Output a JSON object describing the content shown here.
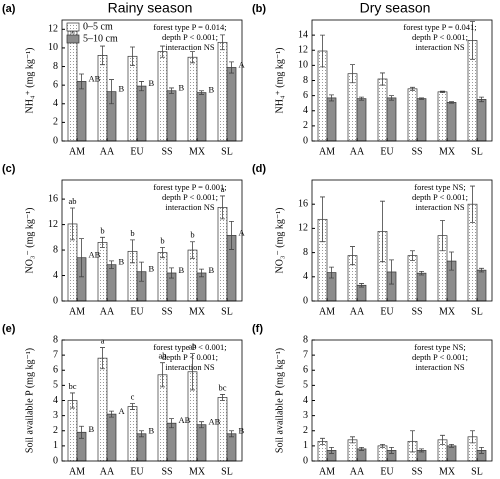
{
  "column_titles": [
    "Rainy season",
    "Dry season"
  ],
  "chart_data": [
    {
      "type": "bar",
      "panel": "(a)",
      "ylabel": "NH₄⁺ (mg kg⁻¹)",
      "annotation": [
        "forest type P = 0.014;",
        "depth P < 0.001;",
        "interaction NS"
      ],
      "categories": [
        "AM",
        "AA",
        "EU",
        "SS",
        "MX",
        "SL"
      ],
      "ylim": [
        0,
        13
      ],
      "yticks": [
        0,
        2,
        4,
        6,
        8,
        10,
        12
      ],
      "legend": "top-left",
      "series": [
        {
          "name": "0–5 cm",
          "color": "#ffffff",
          "pattern": "dots",
          "values": [
            11.8,
            9.2,
            9.1,
            9.6,
            9.0,
            10.6
          ],
          "errors": [
            0.2,
            1.0,
            1.0,
            0.6,
            0.6,
            0.8
          ]
        },
        {
          "name": "5–10 cm",
          "color": "#8c8c8c",
          "values": [
            6.4,
            5.3,
            5.9,
            5.4,
            5.2,
            7.9
          ],
          "errors": [
            0.8,
            1.3,
            0.5,
            0.3,
            0.2,
            0.6
          ],
          "letters": [
            "AB",
            "B",
            "B",
            "B",
            "B",
            "A"
          ]
        }
      ]
    },
    {
      "type": "bar",
      "panel": "(b)",
      "ylabel": "NH₄⁺ (mg kg⁻¹)",
      "annotation": [
        "forest type P = 0.041;",
        "depth P < 0.001;",
        "interaction NS"
      ],
      "categories": [
        "AM",
        "AA",
        "EU",
        "SS",
        "MX",
        "SL"
      ],
      "ylim": [
        0,
        16
      ],
      "yticks": [
        0,
        2,
        4,
        6,
        8,
        10,
        12,
        14
      ],
      "series": [
        {
          "color": "#ffffff",
          "pattern": "dots",
          "values": [
            11.9,
            8.9,
            8.2,
            6.9,
            6.5,
            13.3
          ],
          "errors": [
            2.1,
            1.2,
            0.8,
            0.2,
            0.1,
            2.5
          ]
        },
        {
          "color": "#8c8c8c",
          "values": [
            5.7,
            5.6,
            5.7,
            5.6,
            5.1,
            5.5
          ],
          "errors": [
            0.4,
            0.2,
            0.3,
            0.1,
            0.1,
            0.3
          ]
        }
      ]
    },
    {
      "type": "bar",
      "panel": "(c)",
      "ylabel": "NO₃⁻ (mg kg⁻¹)",
      "annotation": [
        "forest type P = 0.001;",
        "depth P < 0.001;",
        "interaction NS"
      ],
      "categories": [
        "AM",
        "AA",
        "EU",
        "SS",
        "MX",
        "SL"
      ],
      "ylim": [
        0,
        19
      ],
      "yticks": [
        0,
        4,
        8,
        12,
        16
      ],
      "series": [
        {
          "color": "#ffffff",
          "pattern": "dots",
          "values": [
            12.1,
            9.2,
            7.8,
            7.6,
            8.0,
            14.7
          ],
          "errors": [
            2.5,
            0.8,
            1.8,
            0.8,
            1.3,
            1.8
          ],
          "letters": [
            "ab",
            "b",
            "b",
            "b",
            "b",
            "a"
          ]
        },
        {
          "color": "#8c8c8c",
          "values": [
            6.8,
            5.7,
            4.6,
            4.4,
            4.4,
            10.3
          ],
          "errors": [
            3.0,
            0.6,
            1.5,
            0.8,
            0.6,
            2.2
          ],
          "letters": [
            "AB",
            "B",
            "B",
            "B",
            "B",
            "A"
          ]
        }
      ]
    },
    {
      "type": "bar",
      "panel": "(d)",
      "ylabel": "NO₃⁻ (mg kg⁻¹)",
      "annotation": [
        "forest type NS;",
        "depth P < 0.001;",
        "interaction NS"
      ],
      "categories": [
        "AM",
        "AA",
        "EU",
        "SS",
        "MX",
        "SL"
      ],
      "ylim": [
        0,
        20
      ],
      "yticks": [
        0,
        4,
        8,
        12,
        16
      ],
      "series": [
        {
          "color": "#ffffff",
          "pattern": "dots",
          "values": [
            13.5,
            7.5,
            11.5,
            7.5,
            10.8,
            16.0
          ],
          "errors": [
            3.7,
            1.5,
            5.0,
            0.8,
            2.5,
            3.0
          ]
        },
        {
          "color": "#8c8c8c",
          "values": [
            4.7,
            2.6,
            4.8,
            4.6,
            6.6,
            5.1
          ],
          "errors": [
            0.9,
            0.3,
            2.0,
            0.3,
            1.5,
            0.3
          ]
        }
      ]
    },
    {
      "type": "bar",
      "panel": "(e)",
      "ylabel": "Soil available P (mg kg⁻¹)",
      "annotation": [
        "forest type P < 0.001;",
        "depth P < 0.001;",
        "interaction NS"
      ],
      "categories": [
        "AM",
        "AA",
        "EU",
        "SS",
        "MX",
        "SL"
      ],
      "ylim": [
        0,
        8
      ],
      "yticks": [
        0,
        1,
        2,
        3,
        4,
        5,
        6,
        7,
        8
      ],
      "series": [
        {
          "color": "#ffffff",
          "pattern": "dots",
          "values": [
            4.0,
            6.8,
            3.6,
            5.7,
            5.9,
            4.2
          ],
          "errors": [
            0.5,
            0.7,
            0.2,
            0.8,
            1.2,
            0.2
          ],
          "letters": [
            "bc",
            "a",
            "c",
            "ab",
            "ab",
            "bc"
          ]
        },
        {
          "color": "#8c8c8c",
          "values": [
            1.9,
            3.1,
            1.8,
            2.5,
            2.4,
            1.8
          ],
          "errors": [
            0.4,
            0.2,
            0.2,
            0.3,
            0.2,
            0.2
          ],
          "letters": [
            "B",
            "A",
            "B",
            "AB",
            "AB",
            "B"
          ]
        }
      ]
    },
    {
      "type": "bar",
      "panel": "(f)",
      "ylabel": "Soil available P (mg kg⁻¹)",
      "annotation": [
        "forest type NS;",
        "depth P < 0.001;",
        "interaction NS"
      ],
      "categories": [
        "AM",
        "AA",
        "EU",
        "SS",
        "MX",
        "SL"
      ],
      "ylim": [
        0,
        8
      ],
      "yticks": [
        0,
        1,
        2,
        3,
        4,
        5,
        6,
        7,
        8
      ],
      "series": [
        {
          "color": "#ffffff",
          "pattern": "dots",
          "values": [
            1.3,
            1.4,
            1.0,
            1.3,
            1.4,
            1.6
          ],
          "errors": [
            0.2,
            0.2,
            0.1,
            0.7,
            0.3,
            0.4
          ]
        },
        {
          "color": "#8c8c8c",
          "values": [
            0.7,
            0.8,
            0.7,
            0.7,
            1.0,
            0.7
          ],
          "errors": [
            0.2,
            0.1,
            0.2,
            0.1,
            0.1,
            0.2
          ]
        }
      ]
    }
  ]
}
